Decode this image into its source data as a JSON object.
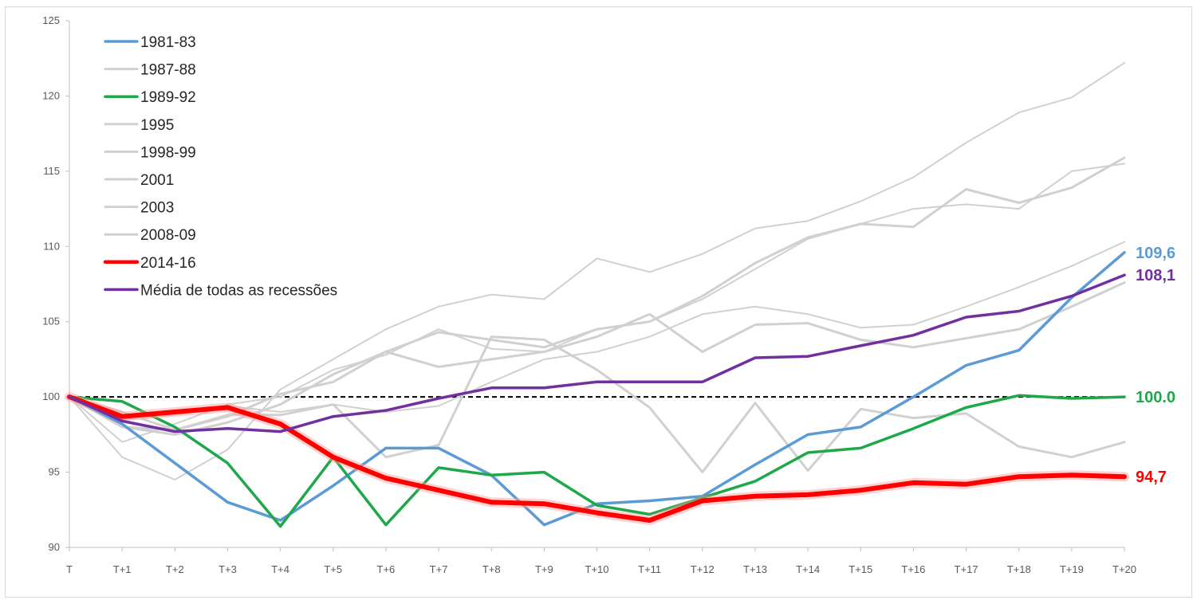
{
  "chart_data": {
    "type": "line",
    "title": "",
    "xlabel": "",
    "ylabel": "",
    "x": [
      "T",
      "T+1",
      "T+2",
      "T+3",
      "T+4",
      "T+5",
      "T+6",
      "T+7",
      "T+8",
      "T+9",
      "T+10",
      "T+11",
      "T+12",
      "T+13",
      "T+14",
      "T+15",
      "T+16",
      "T+17",
      "T+18",
      "T+19",
      "T+20"
    ],
    "ylim": [
      90,
      125
    ],
    "yticks": [
      90,
      95,
      100,
      105,
      110,
      115,
      120,
      125
    ],
    "ytick_labels": [
      "90",
      "95",
      "100",
      "105",
      "110",
      "115",
      "120",
      "125"
    ],
    "reference_line": 100,
    "grid": false,
    "legend_position": "top-left",
    "series": [
      {
        "name": "1981-83",
        "color": "#5b9bd5",
        "width": 3.5,
        "end_label": "109,6",
        "values": [
          100,
          98.2,
          95.6,
          93.0,
          91.8,
          94.1,
          96.6,
          96.6,
          94.8,
          91.5,
          92.9,
          93.1,
          93.4,
          95.5,
          97.5,
          98.0,
          100.0,
          102.1,
          103.1,
          106.6,
          109.6
        ]
      },
      {
        "name": "1987-88",
        "color": "#d0d0d0",
        "width": 3,
        "values": [
          100,
          98.0,
          97.5,
          98.3,
          99.5,
          101.5,
          103.0,
          102.0,
          102.5,
          103.0,
          104.0,
          105.5,
          103.0,
          104.8,
          104.9,
          103.8,
          103.3,
          103.9,
          104.5,
          106.0,
          107.6
        ]
      },
      {
        "name": "1989-92",
        "color": "#1ea84a",
        "width": 3.5,
        "end_label": "100.0",
        "values": [
          100,
          99.7,
          98.0,
          95.6,
          91.4,
          96.0,
          91.5,
          95.3,
          94.8,
          95.0,
          92.8,
          92.2,
          93.3,
          94.4,
          96.3,
          96.6,
          97.9,
          99.3,
          100.1,
          99.9,
          100.0
        ]
      },
      {
        "name": "1995",
        "color": "#d0d0d0",
        "width": 3,
        "values": [
          100,
          99.0,
          97.8,
          98.8,
          98.8,
          99.5,
          96.0,
          96.8,
          104.0,
          103.8,
          101.8,
          99.3,
          95.0,
          99.6,
          95.1,
          99.2,
          98.6,
          98.9,
          96.7,
          96.0,
          97.0
        ]
      },
      {
        "name": "1998-99",
        "color": "#d0d0d0",
        "width": 2,
        "values": [
          100,
          98.5,
          98.8,
          99.4,
          99.0,
          99.5,
          99.0,
          99.4,
          101.0,
          102.5,
          103.0,
          104.0,
          105.5,
          106.0,
          105.5,
          104.6,
          104.8,
          106.0,
          107.3,
          108.7,
          110.3
        ]
      },
      {
        "name": "2001",
        "color": "#d0d0d0",
        "width": 3,
        "values": [
          100,
          98.0,
          97.8,
          98.7,
          100.2,
          101.0,
          103.0,
          104.3,
          103.8,
          103.3,
          104.5,
          105.0,
          106.7,
          108.9,
          110.6,
          111.5,
          111.3,
          113.8,
          112.9,
          113.9,
          115.9
        ]
      },
      {
        "name": "2003",
        "color": "#d0d0d0",
        "width": 2,
        "values": [
          100,
          97.0,
          98.2,
          99.5,
          100.0,
          101.8,
          102.8,
          104.5,
          103.2,
          103.0,
          104.5,
          105.0,
          106.5,
          108.5,
          110.5,
          111.5,
          112.5,
          112.8,
          112.5,
          115.0,
          115.5
        ]
      },
      {
        "name": "2008-09",
        "color": "#d0d0d0",
        "width": 2,
        "values": [
          100,
          96.0,
          94.5,
          96.5,
          100.5,
          102.5,
          104.5,
          106.0,
          106.8,
          106.5,
          109.2,
          108.3,
          109.5,
          111.2,
          111.7,
          113.0,
          114.6,
          116.9,
          118.9,
          119.9,
          122.2
        ]
      },
      {
        "name": "2014-16",
        "color": "#ff0000",
        "width": 6,
        "end_label": "94,7",
        "values": [
          100,
          98.7,
          99.0,
          99.3,
          98.2,
          96.0,
          94.6,
          93.8,
          93.0,
          92.9,
          92.3,
          91.8,
          93.1,
          93.4,
          93.5,
          93.8,
          94.3,
          94.2,
          94.7,
          94.8,
          94.7
        ]
      },
      {
        "name": "Média de todas as recessões",
        "color": "#7030a0",
        "width": 3.5,
        "end_label": "108,1",
        "values": [
          100,
          98.4,
          97.7,
          97.9,
          97.7,
          98.7,
          99.1,
          99.9,
          100.6,
          100.6,
          101.0,
          101.0,
          101.0,
          102.6,
          102.7,
          103.4,
          104.1,
          105.3,
          105.7,
          106.7,
          108.1
        ]
      }
    ]
  }
}
